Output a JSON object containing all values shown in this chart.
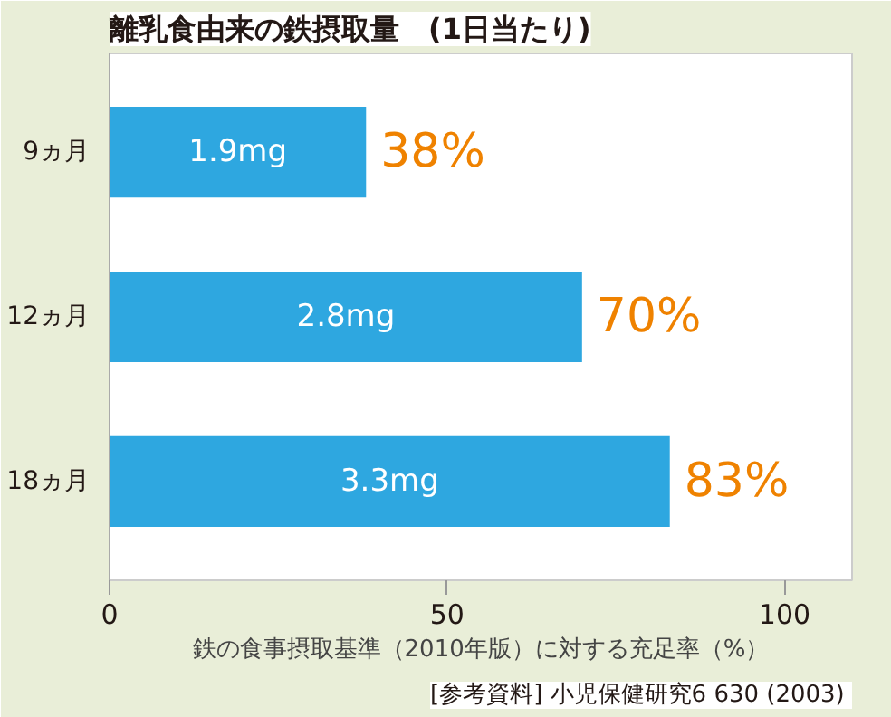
{
  "chart_data": {
    "type": "bar",
    "orientation": "horizontal",
    "title": "離乳食由来の鉄摂取量　(1日当たり)",
    "xlabel": "鉄の食事摂取基準（2010年版）に対する充足率（%）",
    "categories": [
      "9ヵ月",
      "12ヵ月",
      "18ヵ月"
    ],
    "values": [
      38,
      70,
      83
    ],
    "color": "#2ea7e0",
    "value_labels": [
      "38%",
      "70%",
      "83%"
    ],
    "xlim": [
      0,
      110
    ],
    "xticks": [
      0,
      50,
      100
    ],
    "grid": false,
    "annotations": [
      "1.9mg",
      "2.8mg",
      "3.3mg",
      "[参考資料] 小児保健研究6  630 (2003)"
    ]
  }
}
